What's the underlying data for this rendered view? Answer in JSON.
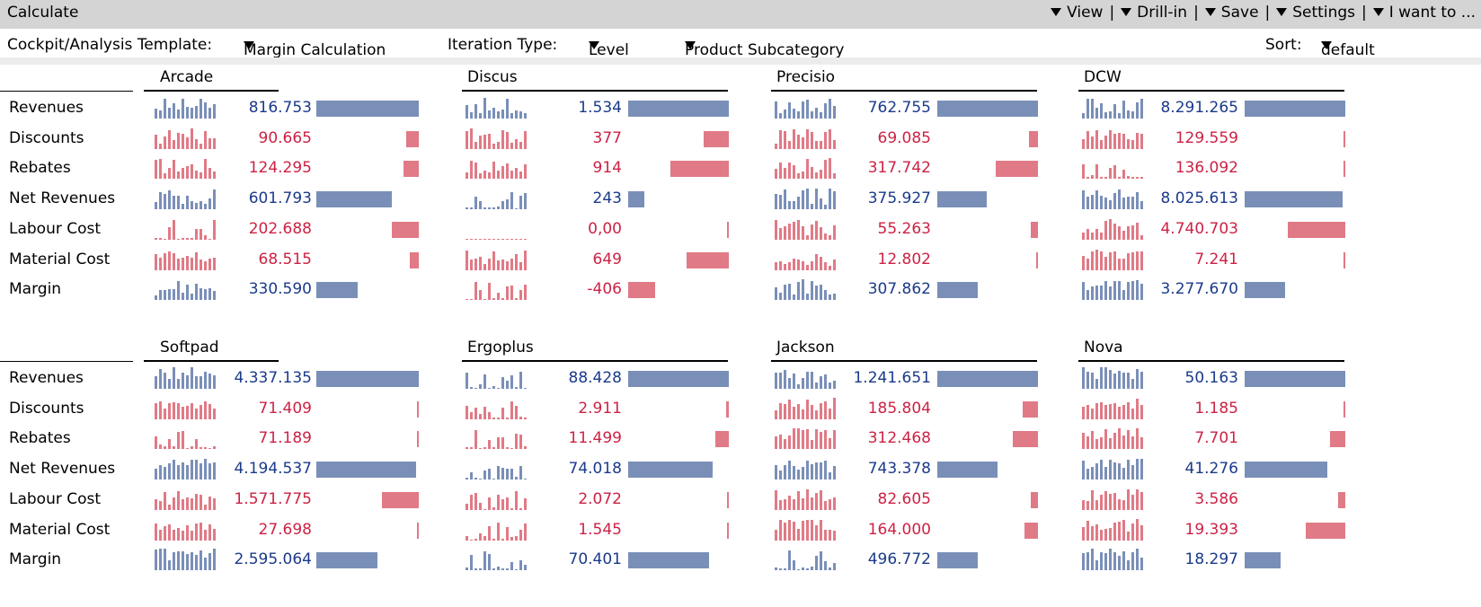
{
  "window": {
    "title": "Calculate",
    "menus": [
      "View",
      "Drill-in",
      "Save",
      "Settings",
      "I want to ..."
    ]
  },
  "options": {
    "template_label": "Cockpit/Analysis Template:",
    "template_value": "Margin Calculation",
    "iteration_label": "Iteration Type:",
    "iteration_value": "Level",
    "dimension_value": "Product Subcategory",
    "sort_label": "Sort:",
    "sort_value": "default"
  },
  "row_labels": [
    "Revenues",
    "Discounts",
    "Rebates",
    "Net Revenues",
    "Labour Cost",
    "Material Cost",
    "Margin"
  ],
  "colors": {
    "positive": "#1a3a8a",
    "negative": "#cc2244",
    "positive_bar": "#7a8fb8",
    "negative_bar": "#e07a86"
  },
  "products": [
    {
      "name": "Arcade",
      "values": [
        "816.753",
        "90.665",
        "124.295",
        "601.793",
        "202.688",
        "68.515",
        "330.590"
      ],
      "bar_fraction": [
        1.0,
        0.12,
        0.15,
        0.74,
        0.26,
        0.09,
        0.4
      ],
      "sparklines": [
        "mixed",
        "mixed",
        "mixed",
        "mixed",
        "sparse",
        "mixed",
        "mixed"
      ]
    },
    {
      "name": "Discus",
      "values": [
        "1.534",
        "377",
        "914",
        "243",
        "0,00",
        "649",
        "-406"
      ],
      "bar_fraction": [
        1.0,
        0.25,
        0.58,
        0.16,
        0.0,
        0.42,
        0.27
      ],
      "sparklines": [
        "mixed",
        "mixed",
        "mixed",
        "sparse",
        "flat",
        "mixed",
        "sparse"
      ]
    },
    {
      "name": "Precisio",
      "values": [
        "762.755",
        "69.085",
        "317.742",
        "375.927",
        "55.263",
        "12.802",
        "307.862"
      ],
      "bar_fraction": [
        1.0,
        0.09,
        0.42,
        0.49,
        0.07,
        0.02,
        0.4
      ],
      "sparklines": [
        "mixed",
        "mixed",
        "mixed",
        "mixed",
        "mixed",
        "mixed",
        "mixed"
      ]
    },
    {
      "name": "DCW",
      "values": [
        "8.291.265",
        "129.559",
        "136.092",
        "8.025.613",
        "4.740.703",
        "7.241",
        "3.277.670"
      ],
      "bar_fraction": [
        1.0,
        0.02,
        0.02,
        0.97,
        0.57,
        0.01,
        0.4
      ],
      "sparklines": [
        "mixed",
        "mixed",
        "sparse",
        "mixed",
        "mixed",
        "dense",
        "dense"
      ]
    },
    {
      "name": "Softpad",
      "values": [
        "4.337.135",
        "71.409",
        "71.189",
        "4.194.537",
        "1.571.775",
        "27.698",
        "2.595.064"
      ],
      "bar_fraction": [
        1.0,
        0.02,
        0.02,
        0.97,
        0.36,
        0.01,
        0.6
      ],
      "sparklines": [
        "dense",
        "dense",
        "sparse",
        "dense",
        "mixed",
        "dense",
        "dense"
      ]
    },
    {
      "name": "Ergoplus",
      "values": [
        "88.428",
        "2.911",
        "11.499",
        "74.018",
        "2.072",
        "1.545",
        "70.401"
      ],
      "bar_fraction": [
        1.0,
        0.03,
        0.13,
        0.84,
        0.02,
        0.02,
        0.8
      ],
      "sparklines": [
        "sparse",
        "sparse",
        "sparse",
        "sparse",
        "sparse",
        "sparse",
        "sparse"
      ]
    },
    {
      "name": "Jackson",
      "values": [
        "1.241.651",
        "185.804",
        "312.468",
        "743.378",
        "82.605",
        "164.000",
        "496.772"
      ],
      "bar_fraction": [
        1.0,
        0.15,
        0.25,
        0.6,
        0.07,
        0.13,
        0.4
      ],
      "sparklines": [
        "mixed",
        "dense",
        "dense",
        "mixed",
        "dense",
        "dense",
        "sparse"
      ]
    },
    {
      "name": "Nova",
      "values": [
        "50.163",
        "1.185",
        "7.701",
        "41.276",
        "3.586",
        "19.393",
        "18.297"
      ],
      "bar_fraction": [
        1.0,
        0.02,
        0.15,
        0.82,
        0.07,
        0.39,
        0.36
      ],
      "sparklines": [
        "dense",
        "dense",
        "dense",
        "dense",
        "dense",
        "dense",
        "dense"
      ]
    }
  ]
}
